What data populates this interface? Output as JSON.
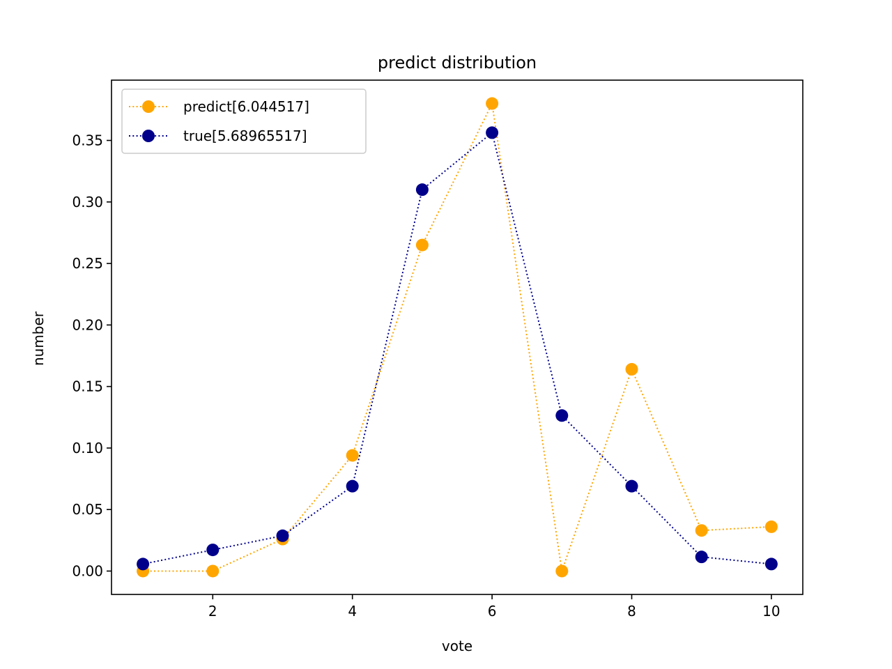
{
  "chart_data": {
    "type": "line",
    "title": "predict distribution",
    "xlabel": "vote",
    "ylabel": "number",
    "xlim": [
      0.55,
      10.45
    ],
    "ylim": [
      -0.019,
      0.399
    ],
    "xticks": [
      2,
      4,
      6,
      8,
      10
    ],
    "xtick_labels": [
      "2",
      "4",
      "6",
      "8",
      "10"
    ],
    "yticks": [
      0,
      0.05,
      0.1,
      0.15,
      0.2,
      0.25,
      0.3,
      0.35
    ],
    "ytick_labels": [
      "0.00",
      "0.05",
      "0.10",
      "0.15",
      "0.20",
      "0.25",
      "0.30",
      "0.35"
    ],
    "grid": false,
    "legend_position": "top-left",
    "x": [
      1,
      2,
      3,
      4,
      5,
      6,
      7,
      8,
      9,
      10
    ],
    "series": [
      {
        "name": "predict[6.044517]",
        "color": "#FFA500",
        "style": "dotted",
        "marker": "circle",
        "values": [
          0.0,
          0.0,
          0.026,
          0.094,
          0.265,
          0.38,
          0.0,
          0.164,
          0.033,
          0.036
        ]
      },
      {
        "name": "true[5.68965517]",
        "color": "#00008B",
        "style": "dotted",
        "marker": "circle",
        "values": [
          0.0057,
          0.0172,
          0.0287,
          0.069,
          0.31,
          0.3563,
          0.1264,
          0.069,
          0.0115,
          0.0057
        ]
      }
    ]
  }
}
